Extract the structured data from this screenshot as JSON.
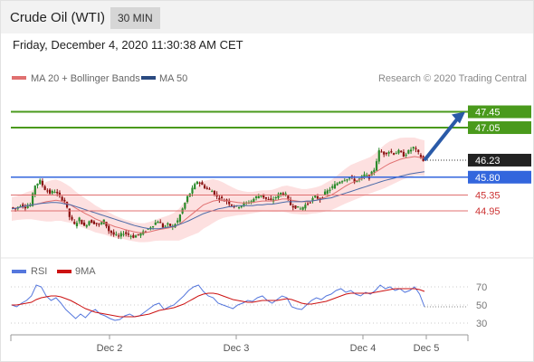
{
  "header": {
    "instrument": "Crude Oil (WTI)",
    "timeframe": "30 MIN"
  },
  "timestamp": "Friday, December 4, 2020 11:30:38 AM CET",
  "legend": {
    "ma20": "MA 20 + Bollinger Bands",
    "ma50": "MA 50"
  },
  "credit": "Research © 2020 Trading Central",
  "colors": {
    "resistance": "#4a9a1c",
    "pivot": "#3366dd",
    "support": "#e07070",
    "last_price": "#222222",
    "arrow": "#2a5aa8",
    "ma20": "#e07070",
    "ma50": "#4a6aa8",
    "bollinger_fill": "#fde0e0",
    "candle_up": "#2a8a2a",
    "candle_down": "#8a1010",
    "rsi": "#5577dd",
    "rsi_ma": "#cc1111"
  },
  "chart_data": [
    {
      "type": "candlestick",
      "title": "Crude Oil (WTI)",
      "timeframe": "30 MIN",
      "ylim": [
        43.9,
        47.85
      ],
      "x_ticks": [
        "Dec 2",
        "Dec 3",
        "Dec 4",
        "Dec 5"
      ],
      "last_price": 46.23,
      "levels": [
        {
          "label": "47.45",
          "value": 47.45,
          "kind": "resistance"
        },
        {
          "label": "47.05",
          "value": 47.05,
          "kind": "resistance"
        },
        {
          "label": "45.80",
          "value": 45.8,
          "kind": "pivot"
        },
        {
          "label": "45.35",
          "value": 45.35,
          "kind": "support"
        },
        {
          "label": "44.95",
          "value": 44.95,
          "kind": "support"
        }
      ],
      "last_label": "46.23",
      "close_path": [
        45.04,
        45.0,
        45.1,
        45.05,
        45.1,
        45.6,
        45.7,
        45.5,
        45.4,
        45.45,
        45.3,
        45.2,
        44.8,
        44.6,
        44.75,
        44.55,
        44.7,
        44.65,
        44.6,
        44.7,
        44.45,
        44.35,
        44.3,
        44.4,
        44.35,
        44.3,
        44.35,
        44.4,
        44.5,
        44.6,
        44.7,
        44.55,
        44.6,
        44.55,
        44.7,
        45.0,
        45.3,
        45.5,
        45.7,
        45.6,
        45.5,
        45.45,
        45.3,
        45.25,
        45.2,
        45.1,
        45.05,
        45.1,
        45.15,
        45.2,
        45.3,
        45.35,
        45.25,
        45.2,
        45.3,
        45.4,
        45.35,
        45.1,
        45.05,
        45.0,
        45.1,
        45.2,
        45.3,
        45.25,
        45.4,
        45.5,
        45.6,
        45.7,
        45.75,
        45.8,
        45.7,
        45.75,
        45.85,
        45.8,
        46.0,
        46.45,
        46.4,
        46.45,
        46.4,
        46.45,
        46.35,
        46.45,
        46.55,
        46.4,
        46.2
      ],
      "bollinger_band_half_width": [
        0.3,
        0.3,
        0.32,
        0.34,
        0.36,
        0.4,
        0.45,
        0.5,
        0.52,
        0.52,
        0.5,
        0.48,
        0.45,
        0.42,
        0.4,
        0.38,
        0.36,
        0.34,
        0.32,
        0.3,
        0.3,
        0.28,
        0.26,
        0.25,
        0.25,
        0.24,
        0.24,
        0.24,
        0.25,
        0.26,
        0.28,
        0.3,
        0.32,
        0.35,
        0.4,
        0.45,
        0.5,
        0.55,
        0.6,
        0.6,
        0.58,
        0.55,
        0.5,
        0.45,
        0.4,
        0.36,
        0.32,
        0.3,
        0.28,
        0.27,
        0.27,
        0.27,
        0.27,
        0.28,
        0.3,
        0.32,
        0.34,
        0.34,
        0.33,
        0.32,
        0.32,
        0.32,
        0.33,
        0.34,
        0.36,
        0.38,
        0.4,
        0.42,
        0.44,
        0.46,
        0.46,
        0.46,
        0.46,
        0.46,
        0.48,
        0.52,
        0.55,
        0.56,
        0.55,
        0.54,
        0.52,
        0.5,
        0.48,
        0.46,
        0.45
      ],
      "ma20": [
        45.0,
        45.02,
        45.05,
        45.08,
        45.1,
        45.12,
        45.15,
        45.18,
        45.2,
        45.22,
        45.2,
        45.15,
        45.1,
        45.02,
        44.95,
        44.88,
        44.82,
        44.75,
        44.7,
        44.65,
        44.6,
        44.55,
        44.52,
        44.48,
        44.45,
        44.42,
        44.4,
        44.4,
        44.42,
        44.45,
        44.48,
        44.5,
        44.52,
        44.55,
        44.6,
        44.7,
        44.8,
        44.9,
        45.0,
        45.1,
        45.15,
        45.2,
        45.22,
        45.22,
        45.2,
        45.18,
        45.16,
        45.15,
        45.15,
        45.16,
        45.18,
        45.2,
        45.2,
        45.2,
        45.22,
        45.25,
        45.25,
        45.22,
        45.2,
        45.18,
        45.18,
        45.2,
        45.22,
        45.25,
        45.3,
        45.35,
        45.42,
        45.5,
        45.58,
        45.65,
        45.7,
        45.75,
        45.8,
        45.85,
        45.92,
        46.0,
        46.08,
        46.15,
        46.2,
        46.25,
        46.28,
        46.3,
        46.32,
        46.3,
        46.28
      ],
      "ma50": [
        45.0,
        45.02,
        45.05,
        45.08,
        45.1,
        45.12,
        45.14,
        45.15,
        45.16,
        45.16,
        45.15,
        45.12,
        45.1,
        45.06,
        45.02,
        44.98,
        44.94,
        44.9,
        44.86,
        44.82,
        44.78,
        44.74,
        44.7,
        44.66,
        44.62,
        44.58,
        44.55,
        44.52,
        44.5,
        44.5,
        44.5,
        44.52,
        44.54,
        44.56,
        44.6,
        44.65,
        44.7,
        44.76,
        44.82,
        44.88,
        44.92,
        44.96,
        45.0,
        45.02,
        45.05,
        45.06,
        45.08,
        45.08,
        45.08,
        45.08,
        45.1,
        45.1,
        45.12,
        45.12,
        45.14,
        45.16,
        45.18,
        45.18,
        45.18,
        45.18,
        45.2,
        45.2,
        45.22,
        45.24,
        45.26,
        45.28,
        45.32,
        45.36,
        45.4,
        45.44,
        45.48,
        45.52,
        45.56,
        45.6,
        45.64,
        45.68,
        45.72,
        45.75,
        45.78,
        45.82,
        45.85,
        45.88,
        45.9,
        45.92,
        45.94
      ],
      "projection": {
        "from": 46.23,
        "to": 47.45
      }
    },
    {
      "type": "line",
      "series": [
        {
          "name": "RSI",
          "values": [
            50,
            48,
            52,
            55,
            60,
            72,
            70,
            60,
            55,
            58,
            52,
            45,
            40,
            35,
            40,
            36,
            42,
            45,
            40,
            38,
            35,
            33,
            34,
            38,
            40,
            37,
            38,
            42,
            46,
            50,
            52,
            45,
            48,
            50,
            55,
            60,
            66,
            70,
            72,
            65,
            60,
            58,
            52,
            50,
            48,
            46,
            50,
            52,
            55,
            54,
            58,
            60,
            55,
            52,
            56,
            60,
            58,
            48,
            46,
            45,
            50,
            55,
            58,
            56,
            60,
            62,
            66,
            68,
            64,
            66,
            62,
            60,
            64,
            62,
            66,
            72,
            68,
            70,
            66,
            68,
            64,
            66,
            70,
            62,
            48
          ]
        },
        {
          "name": "9MA",
          "values": [
            50,
            50,
            51,
            52,
            53,
            56,
            58,
            59,
            60,
            60,
            59,
            57,
            55,
            52,
            49,
            46,
            44,
            42,
            41,
            40,
            39,
            38,
            37,
            37,
            37,
            37,
            38,
            39,
            40,
            42,
            44,
            45,
            46,
            47,
            49,
            51,
            54,
            57,
            60,
            62,
            63,
            63,
            62,
            60,
            58,
            56,
            55,
            54,
            53,
            53,
            54,
            55,
            55,
            55,
            55,
            56,
            57,
            56,
            54,
            52,
            51,
            51,
            52,
            53,
            54,
            56,
            58,
            60,
            62,
            63,
            63,
            63,
            63,
            63,
            64,
            65,
            66,
            67,
            68,
            68,
            68,
            68,
            68,
            67,
            65
          ]
        }
      ],
      "y_ticks": [
        "70",
        "50",
        "30"
      ],
      "ylim": [
        20,
        80
      ],
      "legend": [
        "RSI",
        "9MA"
      ]
    }
  ]
}
